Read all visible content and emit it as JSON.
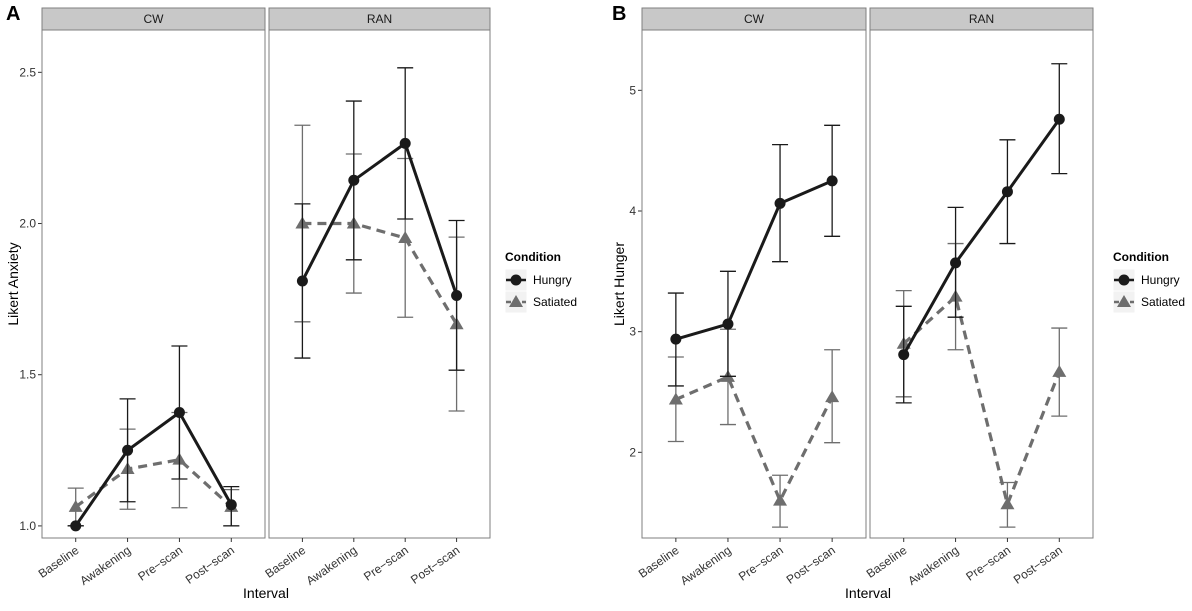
{
  "colors": {
    "hungry": "#1a1a1a",
    "satiated": "#6e6e6e"
  },
  "legend": {
    "title": "Condition",
    "entries": [
      {
        "name": "Hungry",
        "marker": "circle",
        "line": "solid"
      },
      {
        "name": "Satiated",
        "marker": "triangle",
        "line": "dashed"
      }
    ]
  },
  "chart_data": [
    {
      "panel_label": "A",
      "type": "line",
      "xlabel": "Interval",
      "ylabel": "Likert Anxiety",
      "categories": [
        "Baseline",
        "Awakening",
        "Pre−scan",
        "Post−scan"
      ],
      "ylim": [
        0.96,
        2.64
      ],
      "yticks": [
        1.0,
        1.5,
        2.0,
        2.5
      ],
      "ytick_labels": [
        "1.0",
        "1.5",
        "2.0",
        "2.5"
      ],
      "facets": [
        {
          "name": "CW",
          "series": [
            {
              "name": "Hungry",
              "values": [
                1.0,
                1.25,
                1.375,
                1.07
              ],
              "err_low": [
                1.0,
                1.08,
                1.155,
                1.0
              ],
              "err_high": [
                1.0,
                1.42,
                1.595,
                1.13
              ]
            },
            {
              "name": "Satiated",
              "values": [
                1.063,
                1.188,
                1.219,
                1.063
              ],
              "err_low": [
                1.0,
                1.055,
                1.06,
                1.0
              ],
              "err_high": [
                1.125,
                1.32,
                1.375,
                1.12
              ]
            }
          ]
        },
        {
          "name": "RAN",
          "series": [
            {
              "name": "Hungry",
              "values": [
                1.81,
                2.143,
                2.265,
                1.762
              ],
              "err_low": [
                1.555,
                1.88,
                2.015,
                1.515
              ],
              "err_high": [
                2.065,
                2.405,
                2.515,
                2.01
              ]
            },
            {
              "name": "Satiated",
              "values": [
                2.0,
                2.0,
                1.952,
                1.667
              ],
              "err_low": [
                1.675,
                1.77,
                1.69,
                1.38
              ],
              "err_high": [
                2.325,
                2.23,
                2.215,
                1.955
              ]
            }
          ]
        }
      ]
    },
    {
      "panel_label": "B",
      "type": "line",
      "xlabel": "Interval",
      "ylabel": "Likert Hunger",
      "categories": [
        "Baseline",
        "Awakening",
        "Pre−scan",
        "Post−scan"
      ],
      "ylim": [
        1.29,
        5.5
      ],
      "yticks": [
        2,
        3,
        4,
        5
      ],
      "ytick_labels": [
        "2",
        "3",
        "4",
        "5"
      ],
      "facets": [
        {
          "name": "CW",
          "series": [
            {
              "name": "Hungry",
              "values": [
                2.938,
                3.063,
                4.063,
                4.25
              ],
              "err_low": [
                2.55,
                2.63,
                3.58,
                3.79
              ],
              "err_high": [
                3.32,
                3.5,
                4.55,
                4.71
              ]
            },
            {
              "name": "Satiated",
              "values": [
                2.438,
                2.625,
                1.6,
                2.458
              ],
              "err_low": [
                2.09,
                2.23,
                1.38,
                2.08
              ],
              "err_high": [
                2.79,
                3.02,
                1.81,
                2.85
              ]
            }
          ]
        },
        {
          "name": "RAN",
          "series": [
            {
              "name": "Hungry",
              "values": [
                2.81,
                3.57,
                4.16,
                4.76
              ],
              "err_low": [
                2.41,
                3.12,
                3.73,
                4.31
              ],
              "err_high": [
                3.21,
                4.03,
                4.59,
                5.22
              ]
            },
            {
              "name": "Satiated",
              "values": [
                2.9,
                3.29,
                1.57,
                2.667
              ],
              "err_low": [
                2.46,
                2.85,
                1.38,
                2.3
              ],
              "err_high": [
                3.34,
                3.73,
                1.75,
                3.03
              ]
            }
          ]
        }
      ]
    }
  ]
}
